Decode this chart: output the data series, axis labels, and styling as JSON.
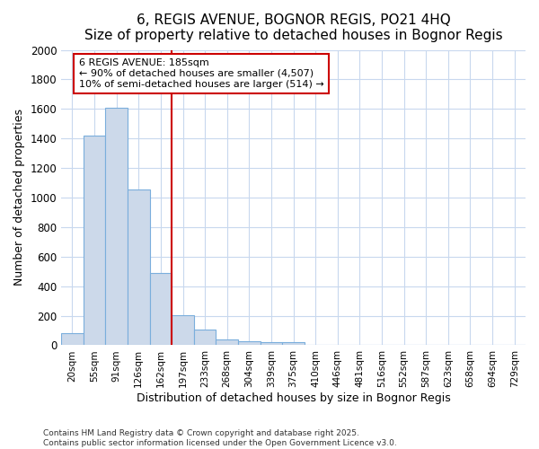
{
  "title": "6, REGIS AVENUE, BOGNOR REGIS, PO21 4HQ",
  "subtitle": "Size of property relative to detached houses in Bognor Regis",
  "xlabel": "Distribution of detached houses by size in Bognor Regis",
  "ylabel": "Number of detached properties",
  "categories": [
    "20sqm",
    "55sqm",
    "91sqm",
    "126sqm",
    "162sqm",
    "197sqm",
    "233sqm",
    "268sqm",
    "304sqm",
    "339sqm",
    "375sqm",
    "410sqm",
    "446sqm",
    "481sqm",
    "516sqm",
    "552sqm",
    "587sqm",
    "623sqm",
    "658sqm",
    "694sqm",
    "729sqm"
  ],
  "values": [
    80,
    1420,
    1610,
    1055,
    490,
    205,
    105,
    40,
    28,
    18,
    18,
    0,
    0,
    0,
    0,
    0,
    0,
    0,
    0,
    0,
    0
  ],
  "bar_color": "#ccd9ea",
  "bar_edge_color": "#7aaedc",
  "vline_x": 4.5,
  "vline_color": "#cc0000",
  "annotation_line1": "6 REGIS AVENUE: 185sqm",
  "annotation_line2": "← 90% of detached houses are smaller (4,507)",
  "annotation_line3": "10% of semi-detached houses are larger (514) →",
  "annotation_box_color": "#ffffff",
  "annotation_box_edge": "#cc0000",
  "ylim": [
    0,
    2000
  ],
  "yticks": [
    0,
    200,
    400,
    600,
    800,
    1000,
    1200,
    1400,
    1600,
    1800,
    2000
  ],
  "footer1": "Contains HM Land Registry data © Crown copyright and database right 2025.",
  "footer2": "Contains public sector information licensed under the Open Government Licence v3.0.",
  "bg_color": "#ffffff",
  "plot_bg_color": "#ffffff",
  "grid_color": "#c8d8ee",
  "title_fontsize": 11,
  "subtitle_fontsize": 10
}
